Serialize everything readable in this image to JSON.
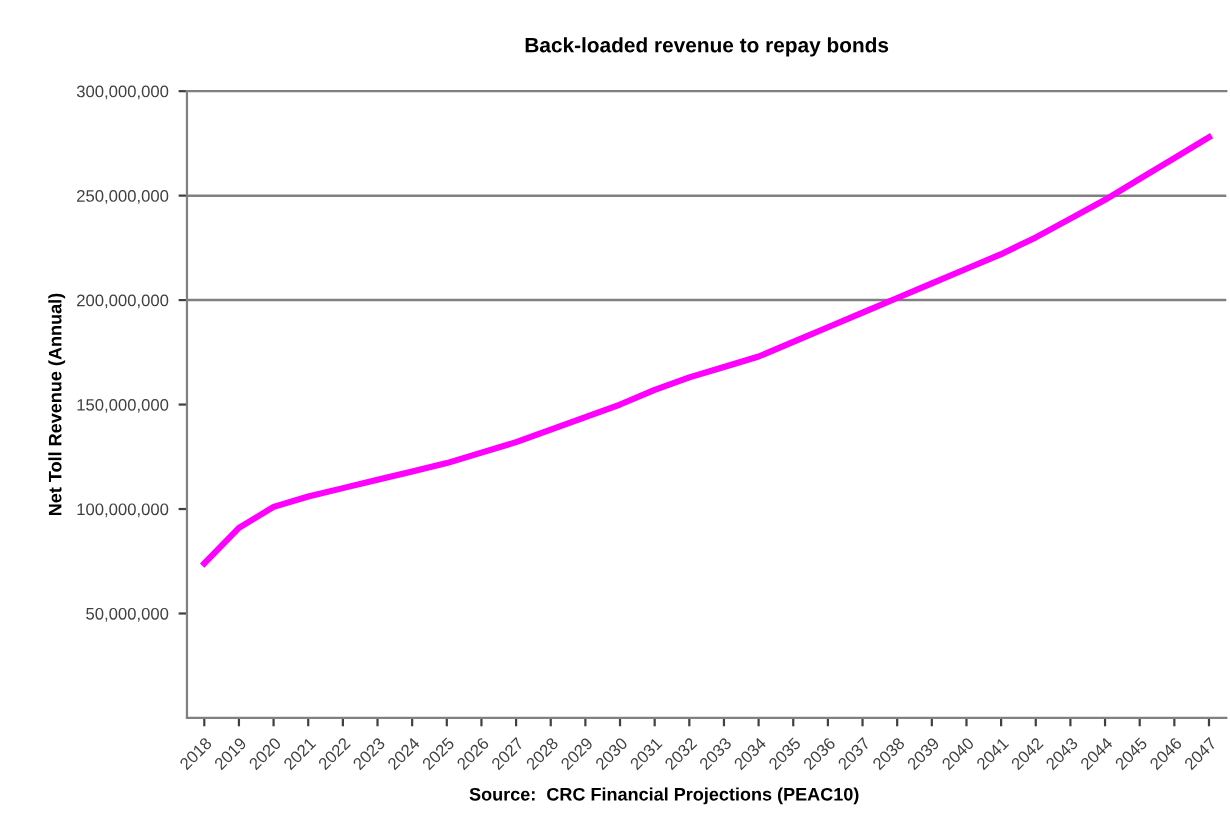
{
  "chart_data": {
    "type": "line",
    "title": "Back-loaded revenue to repay bonds",
    "ylabel": "Net Toll Revenue (Annual)",
    "categories": [
      "2018",
      "2019",
      "2020",
      "2021",
      "2022",
      "2023",
      "2024",
      "2025",
      "2026",
      "2027",
      "2028",
      "2029",
      "2030",
      "2031",
      "2032",
      "2033",
      "2034",
      "2035",
      "2036",
      "2037",
      "2038",
      "2039",
      "2040",
      "2041",
      "2042",
      "2043",
      "2044",
      "2045",
      "2046",
      "2047"
    ],
    "series": [
      {
        "color": "#ff00ff",
        "values": [
          74000000,
          91000000,
          101000000,
          106000000,
          110000000,
          114000000,
          118000000,
          122000000,
          127000000,
          132000000,
          138000000,
          144000000,
          150000000,
          157000000,
          163000000,
          168000000,
          173000000,
          180000000,
          187000000,
          194000000,
          201000000,
          208000000,
          215000000,
          222000000,
          230000000,
          239000000,
          248000000,
          258000000,
          268000000,
          278000000
        ]
      }
    ],
    "ylim": [
      0,
      300000000
    ],
    "yticks": [
      {
        "value": 50000000,
        "label": "50,000,000"
      },
      {
        "value": 100000000,
        "label": "100,000,000"
      },
      {
        "value": 150000000,
        "label": "150,000,000"
      },
      {
        "value": 200000000,
        "label": "200,000,000"
      },
      {
        "value": 250000000,
        "label": "250,000,000"
      },
      {
        "value": 300000000,
        "label": "300,000,000"
      }
    ],
    "ref_lines": [
      {
        "axis": "y",
        "value": 200000000,
        "color": "#808080"
      },
      {
        "axis": "y",
        "value": 250000000,
        "color": "#808080"
      }
    ],
    "annotations": [
      "Source:  CRC Financial Projections (PEAC10)"
    ],
    "marker": "none",
    "line_style": "solid",
    "legend": false
  }
}
